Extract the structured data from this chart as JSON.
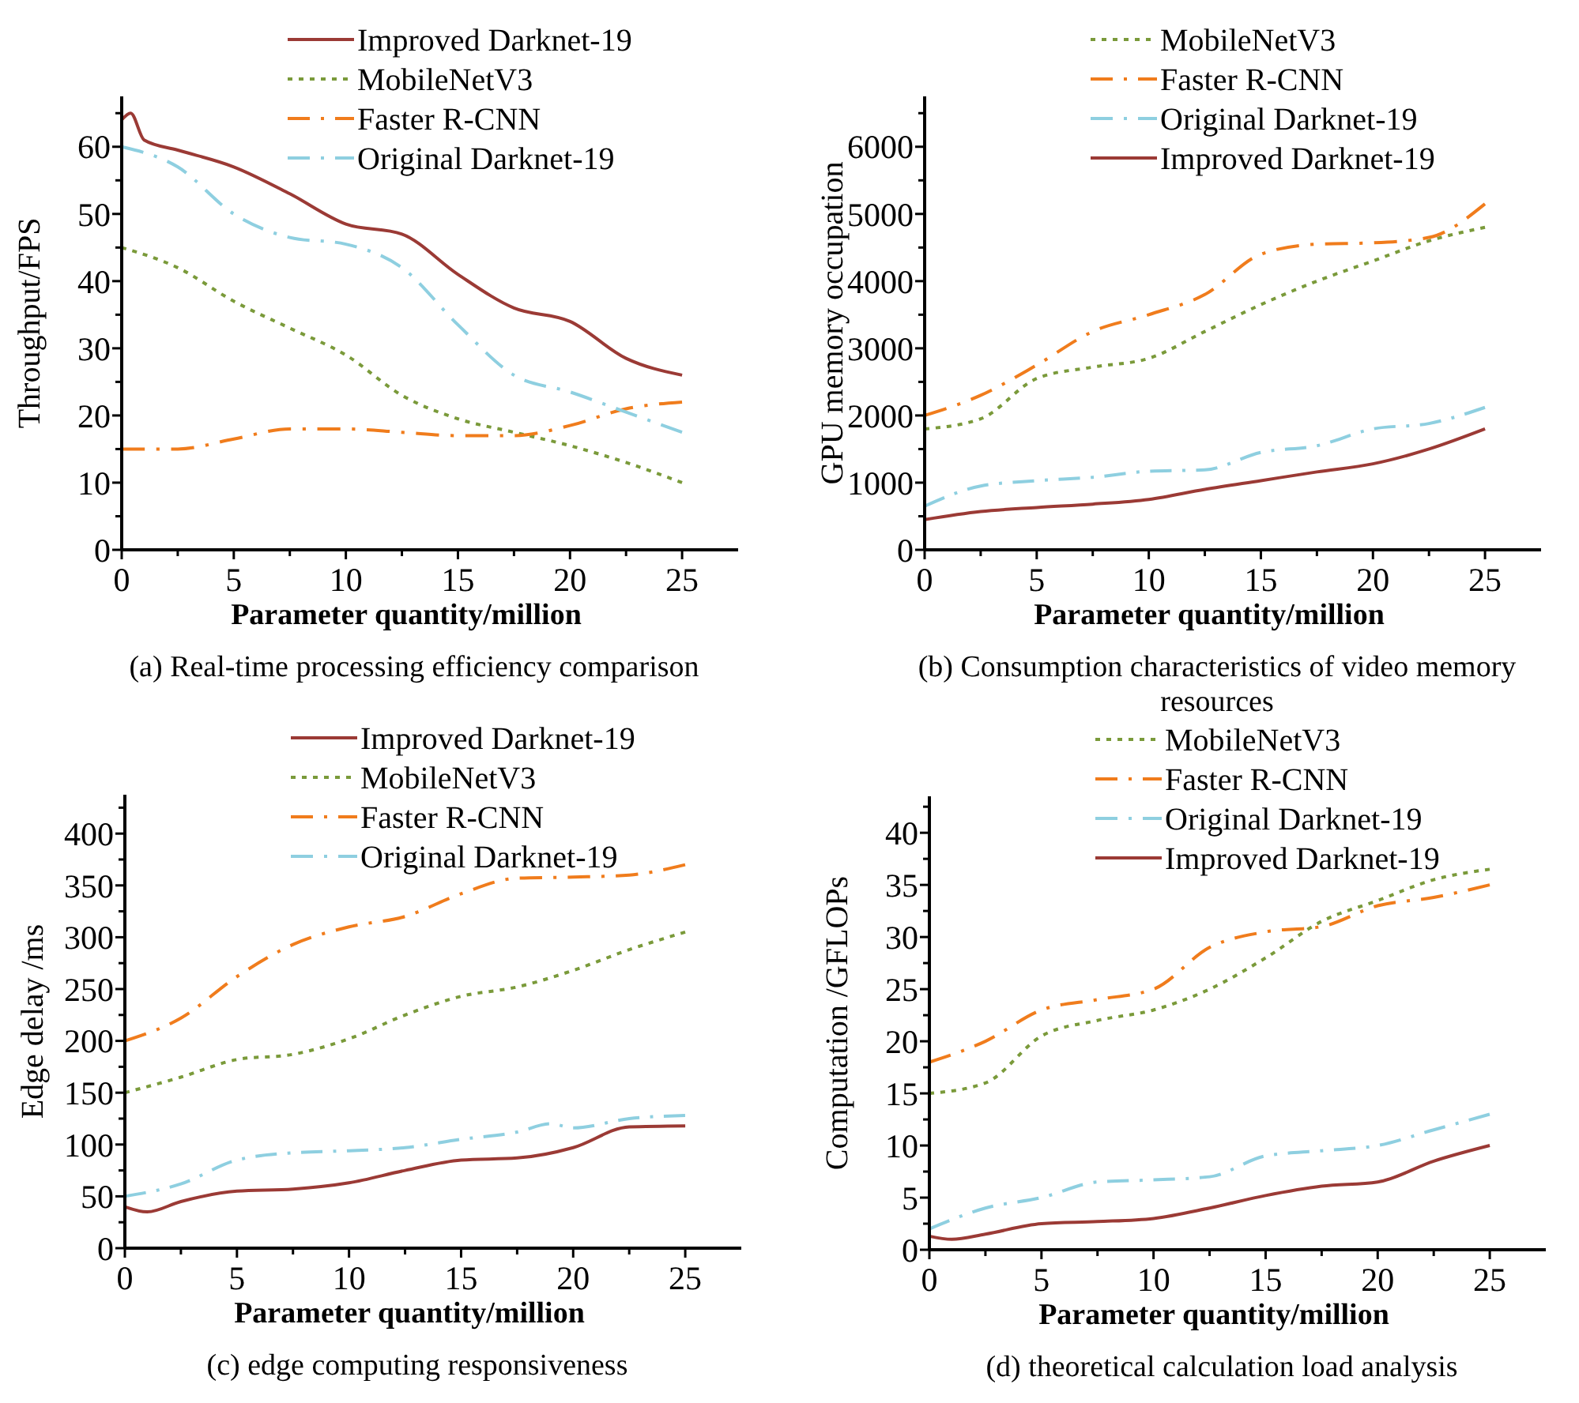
{
  "chart_data": [
    {
      "type": "line",
      "title": "(a) Real-time processing efficiency comparison",
      "xlabel": "Parameter quantity/million",
      "ylabel": "Throughput/FPS",
      "xlim": [
        0,
        27.5
      ],
      "ylim": [
        0,
        67.5
      ],
      "xticks": [
        0,
        {
          "value": 2.5,
          "label": null
        },
        5,
        {
          "value": 7.5,
          "label": null
        },
        10,
        {
          "value": 12.5,
          "label": null
        },
        15,
        {
          "value": 17.5,
          "label": null
        },
        20,
        {
          "value": 22.5,
          "label": null
        },
        25
      ],
      "yticks": [
        0,
        {
          "value": 5,
          "label": null
        },
        10,
        {
          "value": 15,
          "label": null
        },
        20,
        {
          "value": 25,
          "label": null
        },
        30,
        {
          "value": 35,
          "label": null
        },
        40,
        {
          "value": 45,
          "label": null
        },
        50,
        {
          "value": 55,
          "label": null
        },
        60,
        {
          "value": 65,
          "label": null
        }
      ],
      "legend": "top",
      "series": [
        {
          "name": "Improved Darknet-19",
          "color": "#9b3a35",
          "line_style": "solid",
          "x": [
            0,
            0.4,
            1,
            2.5,
            5,
            7.5,
            10,
            12.5,
            15,
            17.5,
            20,
            22.5,
            25
          ],
          "values": [
            64,
            65,
            61,
            59.5,
            57,
            53,
            48.5,
            47,
            41,
            36,
            34,
            28.5,
            26
          ]
        },
        {
          "name": "MobileNetV3",
          "color": "#7a9a3a",
          "line_style": "dotted",
          "x": [
            0,
            2.5,
            5,
            7.5,
            10,
            12.5,
            15,
            17.5,
            20,
            22.5,
            25
          ],
          "values": [
            45,
            42,
            37,
            33,
            29,
            23,
            19.5,
            17.5,
            15.5,
            13,
            10
          ]
        },
        {
          "name": "Faster R-CNN",
          "color": "#f07c1c",
          "line_style": "dashed",
          "x": [
            0,
            2.5,
            5,
            7.5,
            10,
            12.5,
            15,
            17.5,
            20,
            22.5,
            25
          ],
          "values": [
            15,
            15,
            16.5,
            18,
            18,
            17.5,
            17,
            17,
            18.5,
            21,
            22
          ]
        },
        {
          "name": "Original Darknet-19",
          "color": "#8ecfe0",
          "line_style": "dashed",
          "x": [
            0,
            2.5,
            5,
            7.5,
            10,
            12.5,
            15,
            17.5,
            20,
            22.5,
            25
          ],
          "values": [
            60,
            57,
            50,
            46.5,
            45.5,
            42,
            33.5,
            26,
            23.5,
            20.5,
            17.5
          ]
        }
      ]
    },
    {
      "type": "line",
      "title": "(b) Consumption characteristics of video memory resources",
      "xlabel": "Parameter quantity/million",
      "ylabel": "GPU memory occupation",
      "xlim": [
        0,
        27.5
      ],
      "ylim": [
        0,
        6750
      ],
      "xticks": [
        0,
        {
          "value": 2.5,
          "label": null
        },
        5,
        {
          "value": 7.5,
          "label": null
        },
        10,
        {
          "value": 12.5,
          "label": null
        },
        15,
        {
          "value": 17.5,
          "label": null
        },
        20,
        {
          "value": 22.5,
          "label": null
        },
        25
      ],
      "yticks": [
        0,
        {
          "value": 500,
          "label": null
        },
        1000,
        {
          "value": 1500,
          "label": null
        },
        2000,
        {
          "value": 2500,
          "label": null
        },
        3000,
        {
          "value": 3500,
          "label": null
        },
        4000,
        {
          "value": 4500,
          "label": null
        },
        5000,
        {
          "value": 5500,
          "label": null
        },
        6000,
        {
          "value": 6500,
          "label": null
        }
      ],
      "legend": "top",
      "series": [
        {
          "name": "MobileNetV3",
          "color": "#7a9a3a",
          "line_style": "dotted",
          "x": [
            0,
            2.5,
            5,
            7.5,
            10,
            12.5,
            15,
            17.5,
            20,
            22.5,
            25
          ],
          "values": [
            1800,
            1950,
            2550,
            2720,
            2850,
            3250,
            3650,
            4000,
            4300,
            4600,
            4800
          ]
        },
        {
          "name": "Faster R-CNN",
          "color": "#f07c1c",
          "line_style": "dashed",
          "x": [
            0,
            2.5,
            5,
            7.5,
            10,
            12.5,
            15,
            17.5,
            20,
            22.5,
            25
          ],
          "values": [
            2000,
            2300,
            2750,
            3250,
            3500,
            3800,
            4400,
            4550,
            4570,
            4650,
            5150
          ]
        },
        {
          "name": "Original Darknet-19",
          "color": "#8ecfe0",
          "line_style": "dashed",
          "x": [
            0,
            2.5,
            5,
            7.5,
            10,
            12.5,
            15,
            17.5,
            20,
            22.5,
            25
          ],
          "values": [
            650,
            950,
            1030,
            1080,
            1170,
            1190,
            1450,
            1550,
            1800,
            1880,
            2120
          ]
        },
        {
          "name": "Improved Darknet-19",
          "color": "#9b3a35",
          "line_style": "solid",
          "x": [
            0,
            2.5,
            5,
            7.5,
            10,
            12.5,
            15,
            17.5,
            20,
            22.5,
            25
          ],
          "values": [
            450,
            570,
            630,
            680,
            750,
            900,
            1030,
            1160,
            1280,
            1500,
            1800
          ]
        }
      ]
    },
    {
      "type": "line",
      "title": "(c) edge computing responsiveness",
      "xlabel": "Parameter quantity/million",
      "ylabel": "Edge delay /ms",
      "xlim": [
        0,
        27.5
      ],
      "ylim": [
        0,
        437.5
      ],
      "xticks": [
        0,
        {
          "value": 2.5,
          "label": null
        },
        5,
        {
          "value": 7.5,
          "label": null
        },
        10,
        {
          "value": 12.5,
          "label": null
        },
        15,
        {
          "value": 17.5,
          "label": null
        },
        20,
        {
          "value": 22.5,
          "label": null
        },
        25
      ],
      "yticks": [
        0,
        {
          "value": 25,
          "label": null
        },
        50,
        {
          "value": 75,
          "label": null
        },
        100,
        {
          "value": 125,
          "label": null
        },
        150,
        {
          "value": 175,
          "label": null
        },
        200,
        {
          "value": 225,
          "label": null
        },
        250,
        {
          "value": 275,
          "label": null
        },
        300,
        {
          "value": 325,
          "label": null
        },
        350,
        {
          "value": 375,
          "label": null
        },
        400,
        {
          "value": 425,
          "label": null
        }
      ],
      "legend": "top",
      "series": [
        {
          "name": "Improved Darknet-19",
          "color": "#9b3a35",
          "line_style": "solid",
          "x": [
            0,
            1,
            2.5,
            5,
            7.5,
            10,
            12.5,
            15,
            17.5,
            20,
            22.5,
            25
          ],
          "values": [
            40,
            35,
            45,
            55,
            57,
            63,
            75,
            85,
            87,
            97,
            117,
            118
          ]
        },
        {
          "name": "MobileNetV3",
          "color": "#7a9a3a",
          "line_style": "dotted",
          "x": [
            0,
            2.5,
            5,
            7.5,
            10,
            12.5,
            15,
            17.5,
            20,
            22.5,
            25
          ],
          "values": [
            150,
            165,
            182,
            187,
            202,
            225,
            243,
            252,
            268,
            288,
            305
          ]
        },
        {
          "name": "Faster R-CNN",
          "color": "#f07c1c",
          "line_style": "dashed",
          "x": [
            0,
            2.5,
            5,
            7.5,
            10,
            12.5,
            15,
            17.5,
            20,
            22.5,
            25
          ],
          "values": [
            200,
            222,
            262,
            293,
            310,
            320,
            342,
            357,
            358,
            360,
            370
          ]
        },
        {
          "name": "Original Darknet-19",
          "color": "#8ecfe0",
          "line_style": "dashed",
          "x": [
            0,
            2.5,
            5,
            7.5,
            10,
            12.5,
            15,
            17.5,
            19,
            20,
            22.5,
            25
          ],
          "values": [
            50,
            62,
            85,
            92,
            94,
            97,
            105,
            112,
            120,
            116,
            125,
            128
          ]
        }
      ]
    },
    {
      "type": "line",
      "title": "(d) theoretical calculation load analysis",
      "xlabel": "Parameter quantity/million",
      "ylabel": "Computation /GFLOPs",
      "xlim": [
        0,
        27.5
      ],
      "ylim": [
        0,
        43.5
      ],
      "xticks": [
        0,
        {
          "value": 2.5,
          "label": null
        },
        5,
        {
          "value": 7.5,
          "label": null
        },
        10,
        {
          "value": 12.5,
          "label": null
        },
        15,
        {
          "value": 17.5,
          "label": null
        },
        20,
        {
          "value": 22.5,
          "label": null
        },
        25
      ],
      "yticks": [
        0,
        {
          "value": 2.5,
          "label": null
        },
        5,
        {
          "value": 7.5,
          "label": null
        },
        10,
        {
          "value": 12.5,
          "label": null
        },
        15,
        {
          "value": 17.5,
          "label": null
        },
        20,
        {
          "value": 22.5,
          "label": null
        },
        25,
        {
          "value": 27.5,
          "label": null
        },
        30,
        {
          "value": 32.5,
          "label": null
        },
        35,
        {
          "value": 37.5,
          "label": null
        },
        40,
        {
          "value": 42.5,
          "label": null
        }
      ],
      "legend": "top",
      "series": [
        {
          "name": "MobileNetV3",
          "color": "#7a9a3a",
          "line_style": "dotted",
          "x": [
            0,
            2.5,
            5,
            7.5,
            10,
            12.5,
            15,
            17.5,
            20,
            22.5,
            25
          ],
          "values": [
            15,
            16,
            20.5,
            22,
            23,
            25,
            28,
            31.5,
            33.5,
            35.5,
            36.5
          ]
        },
        {
          "name": "Faster R-CNN",
          "color": "#f07c1c",
          "line_style": "dashed",
          "x": [
            0,
            2.5,
            5,
            7.5,
            10,
            12.5,
            15,
            17.5,
            20,
            22.5,
            25
          ],
          "values": [
            18,
            20,
            23,
            24,
            25,
            29,
            30.5,
            31,
            33,
            33.8,
            35
          ]
        },
        {
          "name": "Original Darknet-19",
          "color": "#8ecfe0",
          "line_style": "dashed",
          "x": [
            0,
            2.5,
            5,
            7.5,
            10,
            12.5,
            15,
            17.5,
            20,
            22.5,
            25
          ],
          "values": [
            2,
            4,
            5,
            6.5,
            6.7,
            7,
            9,
            9.5,
            10,
            11.5,
            13
          ]
        },
        {
          "name": "Improved Darknet-19",
          "color": "#9b3a35",
          "line_style": "solid",
          "x": [
            0,
            1,
            2.5,
            5,
            7.5,
            10,
            12.5,
            15,
            17.5,
            20,
            22.5,
            25
          ],
          "values": [
            1.3,
            1,
            1.5,
            2.5,
            2.7,
            3,
            4,
            5.2,
            6.1,
            6.5,
            8.5,
            10
          ]
        }
      ]
    }
  ]
}
